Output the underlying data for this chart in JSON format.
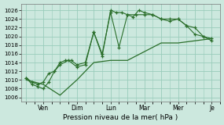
{
  "xlabel": "Pression niveau de la mer( hPa )",
  "bg_color": "#cce8de",
  "grid_color": "#99ccbb",
  "line_color": "#2a6e2a",
  "ylim": [
    1005,
    1027.5
  ],
  "yticks": [
    1006,
    1008,
    1010,
    1012,
    1014,
    1016,
    1018,
    1020,
    1022,
    1024,
    1026
  ],
  "day_labels": [
    "",
    "Ven",
    "",
    "Dim",
    "",
    "Lun",
    "",
    "Mar",
    "",
    "Mer",
    "",
    "Je"
  ],
  "day_positions": [
    0,
    1,
    2,
    3,
    4,
    5,
    6,
    7,
    8,
    9,
    10,
    11
  ],
  "line1_x": [
    0,
    0.33,
    0.67,
    1.0,
    1.33,
    1.67,
    2.0,
    2.33,
    2.67,
    3.0,
    3.5,
    4.0,
    4.5,
    5.0,
    5.33,
    5.67,
    6.0,
    6.33,
    6.67,
    7.0,
    7.5,
    8.0,
    8.5,
    9.0,
    9.5,
    10.0,
    10.5,
    11.0
  ],
  "line1_y": [
    1010.5,
    1009.5,
    1009.0,
    1009.5,
    1011.5,
    1012.0,
    1014.0,
    1014.5,
    1014.5,
    1013.5,
    1014.0,
    1021.0,
    1015.5,
    1026.0,
    1025.5,
    1025.5,
    1025.0,
    1024.5,
    1026.0,
    1025.5,
    1025.0,
    1024.0,
    1023.5,
    1024.0,
    1022.5,
    1020.5,
    1020.0,
    1019.5
  ],
  "line2_x": [
    0,
    0.33,
    0.67,
    1.0,
    1.33,
    1.67,
    2.0,
    2.5,
    3.0,
    3.5,
    4.0,
    4.5,
    5.0,
    5.5,
    6.0,
    6.5,
    7.0,
    7.5,
    8.0,
    8.5,
    9.0,
    9.5,
    10.0,
    10.5,
    11.0
  ],
  "line2_y": [
    1010.5,
    1009.0,
    1008.5,
    1008.0,
    1009.5,
    1012.0,
    1013.5,
    1014.5,
    1013.0,
    1013.5,
    1021.0,
    1016.0,
    1025.5,
    1017.5,
    1025.0,
    1025.0,
    1025.0,
    1025.0,
    1024.0,
    1024.0,
    1024.0,
    1022.5,
    1022.0,
    1020.0,
    1019.0
  ],
  "line3_x": [
    0,
    1,
    2,
    3,
    4,
    5,
    6,
    7,
    8,
    9,
    10,
    11
  ],
  "line3_y": [
    1010.0,
    1009.0,
    1006.5,
    1010.0,
    1014.0,
    1014.5,
    1014.5,
    1016.5,
    1018.5,
    1018.5,
    1019.0,
    1019.5
  ]
}
